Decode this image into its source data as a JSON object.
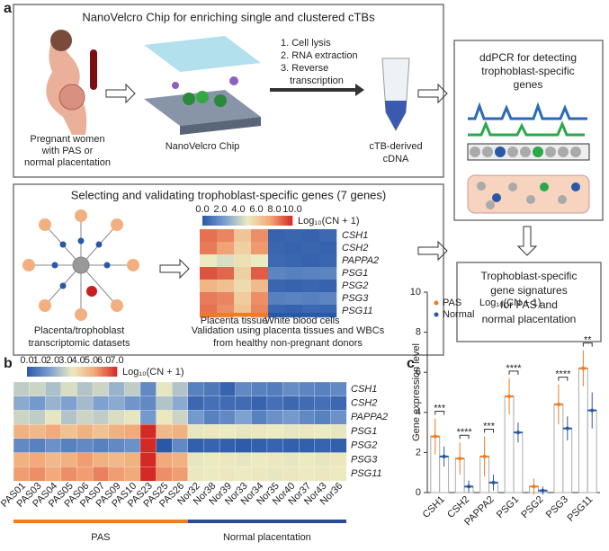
{
  "panel_labels": [
    "a",
    "b",
    "c"
  ],
  "panel_a": {
    "top_title": "NanoVelcro Chip for enriching single and clustered cTBs",
    "women": [
      "Pregnant women",
      "with PAS or",
      "normal placentation"
    ],
    "chip": "NanoVelcro Chip",
    "steps": [
      "1. Cell lysis",
      "2. RNA extraction",
      "3. Reverse",
      "transcription"
    ],
    "cdna": [
      "cTB-derived",
      "cDNA"
    ],
    "ddpcr": [
      "ddPCR for detecting",
      "trophoblast-specific",
      "genes"
    ],
    "mid_title": "Selecting and validating trophoblast-specific genes (7 genes)",
    "datasets": [
      "Placenta/trophoblast",
      "transcriptomic datasets"
    ],
    "validation": [
      "Validation using placenta tissues and WBCs",
      "from healthy non-pregnant donors"
    ],
    "signature": [
      "Trophoblast-specific",
      "gene signatures",
      "for PAS and",
      "normal placentation"
    ]
  },
  "chart_data": [
    {
      "type": "heatmap",
      "colorbar_label": "Log₁₀(CN + 1)",
      "zlim": [
        0,
        10
      ],
      "zticks": [
        {
          "value": 0,
          "label": "0.0"
        },
        {
          "value": 2,
          "label": "2.0"
        },
        {
          "value": 4,
          "label": "4.0"
        },
        {
          "value": 6,
          "label": "6.0"
        },
        {
          "value": 8,
          "label": "8.0"
        },
        {
          "value": 10,
          "label": "10.0"
        }
      ],
      "colors": [
        "#2a58a8",
        "#7b9fd0",
        "#ecebc0",
        "#f2a878",
        "#d42a26"
      ],
      "rows": [
        "CSH1",
        "CSH2",
        "PAPPA2",
        "PSG1",
        "PSG2",
        "PSG3",
        "PSG11"
      ],
      "column_groups": [
        "Placenta tissue",
        "White blood cells"
      ],
      "group_sizes": [
        4,
        4
      ],
      "values": [
        [
          8.6,
          8.2,
          6.4,
          8.0,
          0.4,
          0.5,
          0.4,
          0.6
        ],
        [
          8.4,
          7.6,
          6.0,
          7.8,
          0.5,
          0.4,
          0.5,
          0.4
        ],
        [
          5.0,
          4.6,
          5.4,
          5.0,
          0.6,
          0.5,
          0.4,
          0.5
        ],
        [
          9.2,
          8.8,
          6.0,
          9.0,
          1.6,
          1.4,
          1.5,
          1.6
        ],
        [
          7.0,
          6.6,
          5.6,
          6.8,
          0.5,
          0.4,
          0.5,
          0.4
        ],
        [
          8.4,
          8.2,
          6.2,
          8.0,
          1.4,
          1.5,
          1.4,
          1.6
        ],
        [
          8.6,
          8.0,
          6.4,
          8.2,
          0.5,
          0.4,
          0.6,
          0.5
        ]
      ]
    },
    {
      "type": "heatmap",
      "colorbar_label": "Log₁₀(CN + 1)",
      "zlim": [
        0,
        7
      ],
      "zticks": [
        {
          "value": 0,
          "label": "0.0"
        },
        {
          "value": 1,
          "label": "1.0"
        },
        {
          "value": 2,
          "label": "2.0"
        },
        {
          "value": 3,
          "label": "3.0"
        },
        {
          "value": 4,
          "label": "4.0"
        },
        {
          "value": 5,
          "label": "5.0"
        },
        {
          "value": 6,
          "label": "6.0"
        },
        {
          "value": 7,
          "label": "7.0"
        }
      ],
      "colors": [
        "#2a58a8",
        "#7b9fd0",
        "#ecebc0",
        "#f2a878",
        "#d42a26"
      ],
      "rows": [
        "CSH1",
        "CSH2",
        "PAPPA2",
        "PSG1",
        "PSG2",
        "PSG3",
        "PSG11"
      ],
      "columns": [
        "PAS01",
        "PAS03",
        "PAS04",
        "PAS05",
        "PAS06",
        "PAS07",
        "PAS09",
        "PAS10",
        "PAS23",
        "PAS25",
        "PAS26",
        "Nor32",
        "Nor38",
        "Nor39",
        "Nor33",
        "Nor34",
        "Nor35",
        "Nor40",
        "Nor37",
        "Nor43",
        "Nor36"
      ],
      "column_groups": [
        "PAS",
        "Normal placentation"
      ],
      "group_sizes": [
        11,
        10
      ],
      "group_colors": [
        "#ee7d22",
        "#2a4a9a"
      ],
      "values": [
        [
          2.8,
          3.0,
          2.5,
          3.2,
          2.6,
          3.0,
          2.2,
          2.8,
          1.2,
          3.4,
          2.6,
          1.0,
          0.8,
          0.3,
          1.2,
          1.0,
          0.9,
          1.3,
          1.1,
          1.0,
          1.2
        ],
        [
          2.0,
          1.6,
          2.2,
          1.8,
          2.4,
          1.8,
          2.0,
          1.5,
          1.2,
          2.6,
          2.0,
          0.4,
          0.6,
          0.5,
          0.5,
          0.3,
          0.6,
          0.4,
          0.5,
          0.6,
          0.4
        ],
        [
          3.0,
          2.8,
          3.4,
          2.6,
          3.0,
          2.8,
          3.2,
          3.4,
          1.6,
          3.6,
          3.0,
          1.6,
          1.0,
          1.2,
          1.8,
          1.0,
          1.4,
          1.6,
          1.2,
          1.0,
          1.4
        ],
        [
          5.0,
          4.8,
          5.2,
          4.6,
          5.0,
          4.6,
          5.0,
          5.2,
          7.0,
          4.8,
          5.0,
          3.4,
          3.6,
          3.5,
          3.4,
          3.6,
          3.5,
          3.4,
          3.6,
          3.5,
          3.4
        ],
        [
          1.2,
          1.0,
          1.4,
          1.0,
          1.2,
          1.0,
          1.2,
          1.4,
          7.0,
          0.0,
          1.2,
          0.2,
          0.3,
          0.2,
          0.1,
          0.2,
          0.3,
          0.2,
          0.2,
          0.3,
          0.2
        ],
        [
          5.0,
          5.2,
          4.8,
          5.0,
          5.4,
          5.0,
          4.8,
          5.0,
          7.0,
          5.2,
          5.0,
          3.4,
          3.5,
          3.6,
          3.4,
          3.5,
          3.6,
          3.4,
          3.5,
          3.4,
          3.6
        ],
        [
          5.4,
          5.6,
          5.2,
          5.6,
          5.4,
          5.8,
          5.4,
          5.2,
          7.0,
          5.6,
          5.4,
          3.6,
          3.5,
          3.6,
          3.5,
          3.6,
          3.4,
          3.6,
          3.5,
          3.6,
          3.5
        ]
      ]
    },
    {
      "type": "bar",
      "y_label": "Gene expression level",
      "legend_title": "Log₁₀(CN + 1)",
      "categories": [
        "CSH1",
        "CSH2",
        "PAPPA2",
        "PSG1",
        "PSG2",
        "PSG3",
        "PSG11"
      ],
      "ylim": [
        0,
        10
      ],
      "yticks": [
        0,
        2,
        4,
        6,
        8,
        10
      ],
      "series": [
        {
          "name": "PAS",
          "color": "#ee7d22",
          "values": [
            2.8,
            1.7,
            1.8,
            4.8,
            0.3,
            4.4,
            6.2
          ],
          "errors": [
            0.9,
            0.8,
            1.0,
            0.9,
            0.4,
            1.0,
            0.9
          ]
        },
        {
          "name": "Normal",
          "color": "#2a58a8",
          "values": [
            1.8,
            0.3,
            0.5,
            3.0,
            0.1,
            3.2,
            4.1
          ],
          "errors": [
            0.5,
            0.3,
            0.4,
            0.5,
            0.2,
            0.6,
            0.9
          ]
        }
      ],
      "significance": [
        "***",
        "****",
        "***",
        "****",
        null,
        "****",
        "**"
      ]
    }
  ]
}
